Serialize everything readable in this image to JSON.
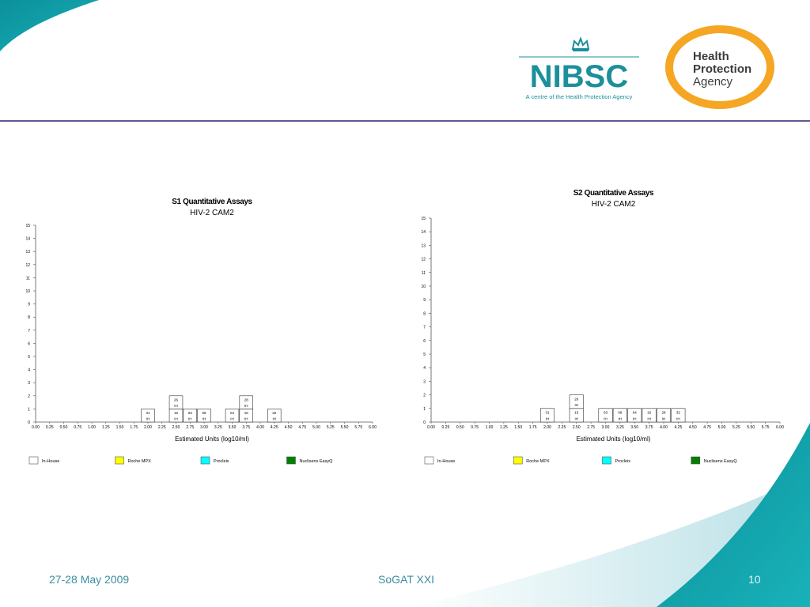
{
  "slide": {
    "footer_date": "27-28 May 2009",
    "footer_center": "SoGAT XXI",
    "page_number": "10",
    "divider_color": "#2b2470",
    "accent_teal": "#0e9aa7"
  },
  "logos": {
    "nibsc_name": "NIBSC",
    "nibsc_tagline": "A centre of the Health Protection Agency",
    "hpa_line1": "Health",
    "hpa_line2": "Protection",
    "hpa_line3": "Agency"
  },
  "chart_data": [
    {
      "type": "bar",
      "title": "S1 Quantitative Assays",
      "subtitle": "HIV-2 CAM2",
      "xlabel": "Estimated Units (log10/ml)",
      "ylabel": "",
      "xlim": [
        0,
        6
      ],
      "ylim": [
        0,
        15
      ],
      "x_ticks": [
        "0.00",
        "0.25",
        "0.50",
        "0.75",
        "1.00",
        "1.25",
        "1.50",
        "1.75",
        "2.00",
        "2.25",
        "2.50",
        "2.75",
        "3.00",
        "3.25",
        "3.50",
        "3.75",
        "4.00",
        "4.25",
        "4.50",
        "4.75",
        "5.00",
        "5.25",
        "5.50",
        "5.75",
        "6.00"
      ],
      "y_ticks": [
        "0",
        "1",
        "2",
        "3",
        "4",
        "5",
        "6",
        "7",
        "8",
        "9",
        "10",
        "11",
        "12",
        "13",
        "14",
        "15"
      ],
      "legend": [
        {
          "name": "In-House",
          "color": "#ffffff"
        },
        {
          "name": "Roche MPX",
          "color": "#ffff00"
        },
        {
          "name": "Procleix",
          "color": "#00ffff"
        },
        {
          "name": "Nuclisens EasyQ",
          "color": "#008000"
        }
      ],
      "legend_placement": "bottom",
      "grid": false,
      "boxes": [
        {
          "x": 2.0,
          "level": 1,
          "lab": "31",
          "assay": "IH"
        },
        {
          "x": 2.5,
          "level": 1,
          "lab": "15",
          "assay": "IH"
        },
        {
          "x": 2.5,
          "level": 2,
          "lab": "26",
          "assay": "IH"
        },
        {
          "x": 2.75,
          "level": 1,
          "lab": "03",
          "assay": "IH"
        },
        {
          "x": 3.0,
          "level": 1,
          "lab": "08",
          "assay": "IH"
        },
        {
          "x": 3.5,
          "level": 1,
          "lab": "04",
          "assay": "IH"
        },
        {
          "x": 3.75,
          "level": 1,
          "lab": "16",
          "assay": "IH"
        },
        {
          "x": 3.75,
          "level": 2,
          "lab": "28",
          "assay": "IH"
        },
        {
          "x": 4.25,
          "level": 1,
          "lab": "32",
          "assay": "IH"
        }
      ]
    },
    {
      "type": "bar",
      "title": "S2 Quantitative Assays",
      "subtitle": "HIV-2 CAM2",
      "xlabel": "Estimated Units (log10/ml)",
      "ylabel": "",
      "xlim": [
        0,
        6
      ],
      "ylim": [
        0,
        15
      ],
      "x_ticks": [
        "0.00",
        "0.25",
        "0.50",
        "0.75",
        "1.00",
        "1.25",
        "1.50",
        "1.75",
        "2.00",
        "2.25",
        "2.50",
        "2.75",
        "3.00",
        "3.25",
        "3.50",
        "3.75",
        "4.00",
        "4.25",
        "4.50",
        "4.75",
        "5.00",
        "5.25",
        "5.50",
        "5.75",
        "6.00"
      ],
      "y_ticks": [
        "0",
        "1",
        "2",
        "3",
        "4",
        "5",
        "6",
        "7",
        "8",
        "9",
        "10",
        "11",
        "12",
        "13",
        "14",
        "15"
      ],
      "legend": [
        {
          "name": "In-House",
          "color": "#ffffff"
        },
        {
          "name": "Roche MPX",
          "color": "#ffff00"
        },
        {
          "name": "Procleix",
          "color": "#00ffff"
        },
        {
          "name": "Nuclisens EasyQ",
          "color": "#008000"
        }
      ],
      "legend_placement": "bottom",
      "grid": false,
      "boxes": [
        {
          "x": 2.0,
          "level": 1,
          "lab": "31",
          "assay": "IH"
        },
        {
          "x": 2.5,
          "level": 1,
          "lab": "15",
          "assay": "IH"
        },
        {
          "x": 2.5,
          "level": 2,
          "lab": "26",
          "assay": "IH"
        },
        {
          "x": 3.0,
          "level": 1,
          "lab": "03",
          "assay": "IH"
        },
        {
          "x": 3.25,
          "level": 1,
          "lab": "08",
          "assay": "IH"
        },
        {
          "x": 3.5,
          "level": 1,
          "lab": "04",
          "assay": "IH"
        },
        {
          "x": 3.75,
          "level": 1,
          "lab": "16",
          "assay": "IH"
        },
        {
          "x": 4.0,
          "level": 1,
          "lab": "28",
          "assay": "IH"
        },
        {
          "x": 4.25,
          "level": 1,
          "lab": "32",
          "assay": "IH"
        }
      ]
    }
  ]
}
